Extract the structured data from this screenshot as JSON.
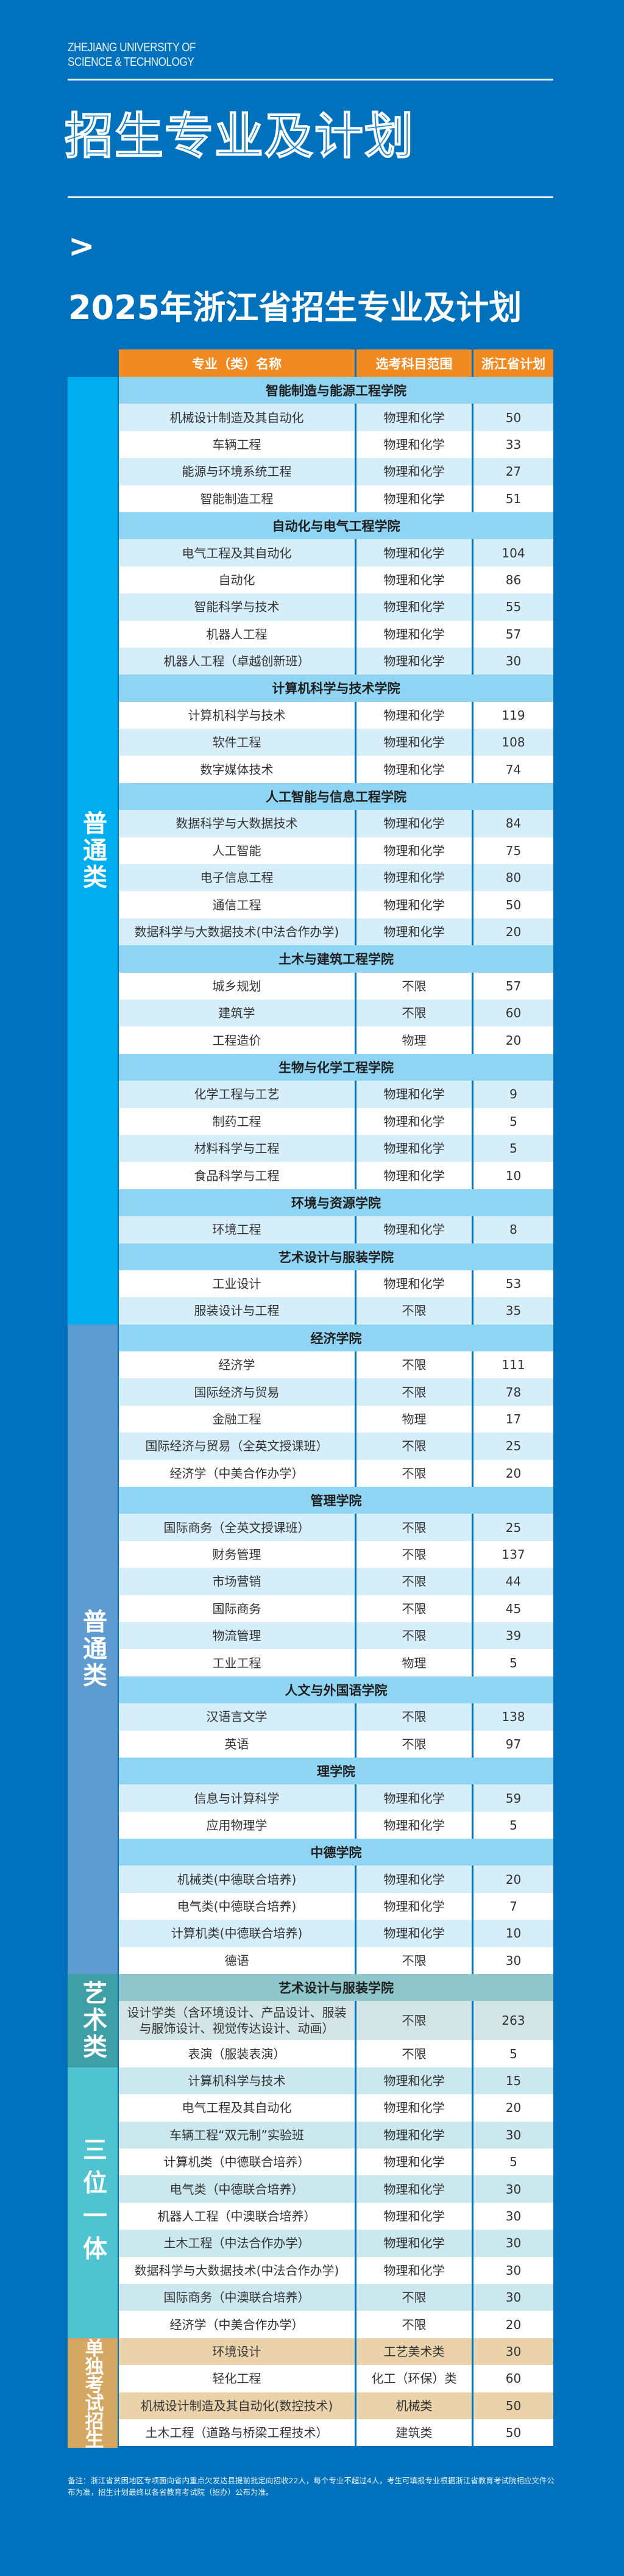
{
  "brand": {
    "line1": "ZHEJIANG UNIVERSITY OF",
    "line2": "SCIENCE & TECHNOLOGY"
  },
  "outline_title": "招生专业及计划",
  "chevron": ">",
  "title": "2025年浙江省招生专业及计划",
  "table": {
    "headers": [
      "专业（类）名称",
      "选考科目范围",
      "浙江省计划"
    ],
    "colors": {
      "header": "#f28a22",
      "page": "#0071bc"
    },
    "groups": [
      {
        "label": "普通类",
        "cat_color": "#00aeef",
        "sec_color": "#8fd4f3",
        "alt_color": "#d5eefa",
        "sections": [
          {
            "college": "智能制造与能源工程学院",
            "rows": [
              {
                "name": "机械设计制造及其自动化",
                "subjects": "物理和化学",
                "plan": "50"
              },
              {
                "name": "车辆工程",
                "subjects": "物理和化学",
                "plan": "33"
              },
              {
                "name": "能源与环境系统工程",
                "subjects": "物理和化学",
                "plan": "27"
              },
              {
                "name": "智能制造工程",
                "subjects": "物理和化学",
                "plan": "51"
              }
            ]
          },
          {
            "college": "自动化与电气工程学院",
            "rows": [
              {
                "name": "电气工程及其自动化",
                "subjects": "物理和化学",
                "plan": "104"
              },
              {
                "name": "自动化",
                "subjects": "物理和化学",
                "plan": "86"
              },
              {
                "name": "智能科学与技术",
                "subjects": "物理和化学",
                "plan": "55"
              },
              {
                "name": "机器人工程",
                "subjects": "物理和化学",
                "plan": "57"
              },
              {
                "name": "机器人工程（卓越创新班）",
                "subjects": "物理和化学",
                "plan": "30"
              }
            ]
          },
          {
            "college": "计算机科学与技术学院",
            "rows": [
              {
                "name": "计算机科学与技术",
                "subjects": "物理和化学",
                "plan": "119"
              },
              {
                "name": "软件工程",
                "subjects": "物理和化学",
                "plan": "108"
              },
              {
                "name": "数字媒体技术",
                "subjects": "物理和化学",
                "plan": "74"
              }
            ]
          },
          {
            "college": "人工智能与信息工程学院",
            "rows": [
              {
                "name": "数据科学与大数据技术",
                "subjects": "物理和化学",
                "plan": "84"
              },
              {
                "name": "人工智能",
                "subjects": "物理和化学",
                "plan": "75"
              },
              {
                "name": "电子信息工程",
                "subjects": "物理和化学",
                "plan": "80"
              },
              {
                "name": "通信工程",
                "subjects": "物理和化学",
                "plan": "50"
              },
              {
                "name": "数据科学与大数据技术(中法合作办学)",
                "subjects": "物理和化学",
                "plan": "20"
              }
            ]
          },
          {
            "college": "土木与建筑工程学院",
            "rows": [
              {
                "name": "城乡规划",
                "subjects": "不限",
                "plan": "57"
              },
              {
                "name": "建筑学",
                "subjects": "不限",
                "plan": "60"
              },
              {
                "name": "工程造价",
                "subjects": "物理",
                "plan": "20"
              }
            ]
          },
          {
            "college": "生物与化学工程学院",
            "rows": [
              {
                "name": "化学工程与工艺",
                "subjects": "物理和化学",
                "plan": "9"
              },
              {
                "name": "制药工程",
                "subjects": "物理和化学",
                "plan": "5"
              },
              {
                "name": "材料科学与工程",
                "subjects": "物理和化学",
                "plan": "5"
              },
              {
                "name": "食品科学与工程",
                "subjects": "物理和化学",
                "plan": "10"
              }
            ]
          },
          {
            "college": "环境与资源学院",
            "rows": [
              {
                "name": "环境工程",
                "subjects": "物理和化学",
                "plan": "8"
              }
            ]
          },
          {
            "college": "艺术设计与服装学院",
            "rows": [
              {
                "name": "工业设计",
                "subjects": "物理和化学",
                "plan": "53"
              },
              {
                "name": "服装设计与工程",
                "subjects": "不限",
                "plan": "35"
              }
            ]
          }
        ]
      },
      {
        "label": "普通类",
        "cat_color": "#5e9bd1",
        "sec_color": "#8fd4f3",
        "alt_color": "#d5eefa",
        "sections": [
          {
            "college": "经济学院",
            "rows": [
              {
                "name": "经济学",
                "subjects": "不限",
                "plan": "111"
              },
              {
                "name": "国际经济与贸易",
                "subjects": "不限",
                "plan": "78"
              },
              {
                "name": "金融工程",
                "subjects": "物理",
                "plan": "17"
              },
              {
                "name": "国际经济与贸易（全英文授课班）",
                "subjects": "不限",
                "plan": "25"
              },
              {
                "name": "经济学（中美合作办学）",
                "subjects": "不限",
                "plan": "20"
              }
            ]
          },
          {
            "college": "管理学院",
            "rows": [
              {
                "name": "国际商务（全英文授课班）",
                "subjects": "不限",
                "plan": "25"
              },
              {
                "name": "财务管理",
                "subjects": "不限",
                "plan": "137"
              },
              {
                "name": "市场营销",
                "subjects": "不限",
                "plan": "44"
              },
              {
                "name": "国际商务",
                "subjects": "不限",
                "plan": "45"
              },
              {
                "name": "物流管理",
                "subjects": "不限",
                "plan": "39"
              },
              {
                "name": "工业工程",
                "subjects": "物理",
                "plan": "5"
              }
            ]
          },
          {
            "college": "人文与外国语学院",
            "rows": [
              {
                "name": "汉语言文学",
                "subjects": "不限",
                "plan": "138"
              },
              {
                "name": "英语",
                "subjects": "不限",
                "plan": "97"
              }
            ]
          },
          {
            "college": "理学院",
            "rows": [
              {
                "name": "信息与计算科学",
                "subjects": "物理和化学",
                "plan": "59"
              },
              {
                "name": "应用物理学",
                "subjects": "物理和化学",
                "plan": "5"
              }
            ]
          },
          {
            "college": "中德学院",
            "rows": [
              {
                "name": "机械类(中德联合培养)",
                "subjects": "物理和化学",
                "plan": "20"
              },
              {
                "name": "电气类(中德联合培养)",
                "subjects": "物理和化学",
                "plan": "7"
              },
              {
                "name": "计算机类(中德联合培养)",
                "subjects": "物理和化学",
                "plan": "10"
              },
              {
                "name": "德语",
                "subjects": "不限",
                "plan": "30"
              }
            ]
          }
        ]
      },
      {
        "label": "艺术类",
        "cat_color": "#3f9fa7",
        "sec_color": "#8ec6c9",
        "alt_color": "#d2e5e4",
        "sections": [
          {
            "college": "艺术设计与服装学院",
            "rows": [
              {
                "name": "设计学类（含环境设计、产品设计、服装与服饰设计、视觉传达设计、动画）",
                "subjects": "不限",
                "plan": "263"
              },
              {
                "name": "表演（服装表演）",
                "subjects": "不限",
                "plan": "5"
              }
            ]
          }
        ]
      },
      {
        "label": "三位一体",
        "cat_color": "#4fc3cf",
        "sec_color": "#8fd4f3",
        "alt_color": "#cbe8ee",
        "sections": [
          {
            "college": null,
            "rows": [
              {
                "name": "计算机科学与技术",
                "subjects": "物理和化学",
                "plan": "15"
              },
              {
                "name": "电气工程及其自动化",
                "subjects": "物理和化学",
                "plan": "20"
              },
              {
                "name": "车辆工程“双元制”实验班",
                "subjects": "物理和化学",
                "plan": "30"
              },
              {
                "name": "计算机类（中德联合培养）",
                "subjects": "物理和化学",
                "plan": "5"
              },
              {
                "name": "电气类（中德联合培养）",
                "subjects": "物理和化学",
                "plan": "30"
              },
              {
                "name": "机器人工程（中澳联合培养）",
                "subjects": "物理和化学",
                "plan": "30"
              },
              {
                "name": "土木工程（中法合作办学）",
                "subjects": "物理和化学",
                "plan": "30"
              },
              {
                "name": "数据科学与大数据技术(中法合作办学)",
                "subjects": "物理和化学",
                "plan": "30"
              },
              {
                "name": "国际商务（中澳联合培养）",
                "subjects": "不限",
                "plan": "30"
              },
              {
                "name": "经济学（中美合作办学）",
                "subjects": "不限",
                "plan": "20"
              }
            ]
          }
        ]
      },
      {
        "label": "单独考试招生",
        "cat_color": "#d4a862",
        "sec_color": "#e9d2a8",
        "alt_color": "#ead3ab",
        "sections": [
          {
            "college": null,
            "rows": [
              {
                "name": "环境设计",
                "subjects": "工艺美术类",
                "plan": "30"
              },
              {
                "name": "轻化工程",
                "subjects": "化工（环保）类",
                "plan": "60"
              },
              {
                "name": "机械设计制造及其自动化(数控技术)",
                "subjects": "机械类",
                "plan": "50"
              },
              {
                "name": "土木工程（道路与桥梁工程技术）",
                "subjects": "建筑类",
                "plan": "50"
              }
            ]
          }
        ]
      }
    ]
  },
  "note": "备注：浙江省贫困地区专项面向省内重点欠发达县提前批定向招收22人，每个专业不超过4人，考生可填报专业根据浙江省教育考试院相应文件公布为准，招生计划最终以各省教育考试院（招办）公布为准。"
}
